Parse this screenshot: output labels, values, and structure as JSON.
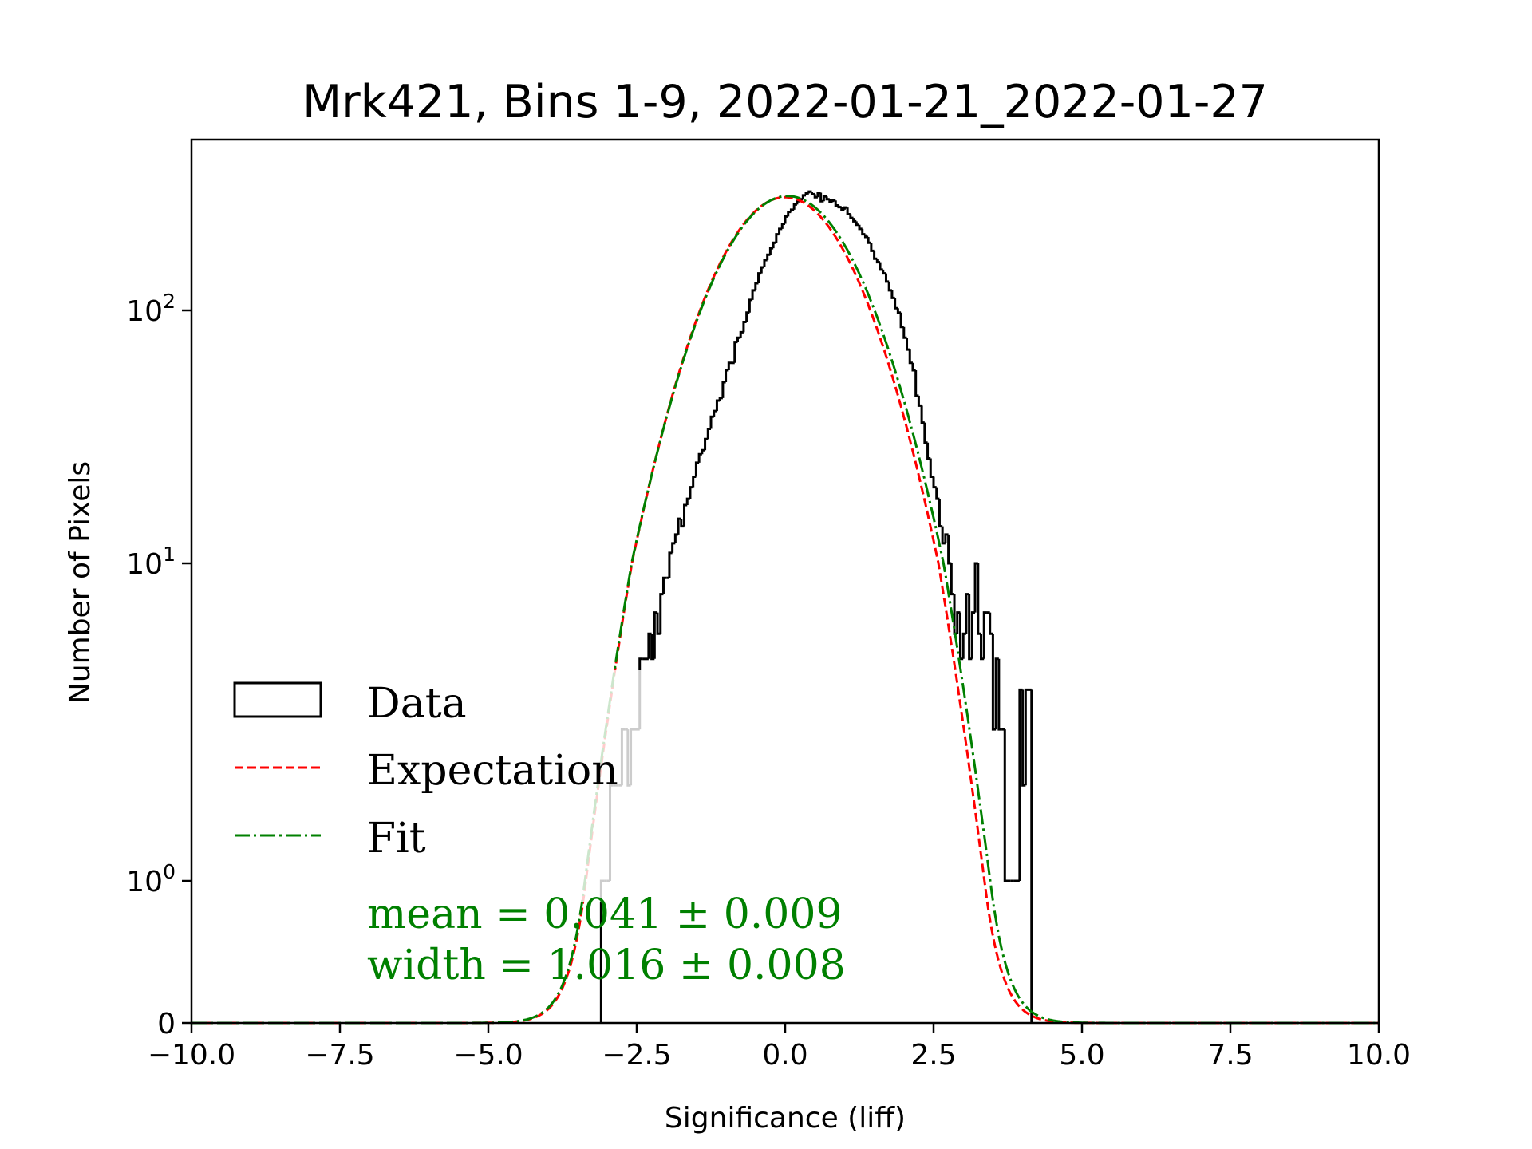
{
  "chart_data": {
    "type": "histogram",
    "title": "Mrk421, Bins 1-9, 2022-01-21_2022-01-27",
    "xlabel": "Significance (liff)",
    "ylabel": "Number of Pixels",
    "xlim": [
      -10,
      10
    ],
    "yscale": "symlog",
    "x_ticks": [
      -10.0,
      -7.5,
      -5.0,
      -2.5,
      0.0,
      2.5,
      5.0,
      7.5,
      10.0
    ],
    "x_tick_labels": [
      "−10.0",
      "−7.5",
      "−5.0",
      "−2.5",
      "0.0",
      "2.5",
      "5.0",
      "7.5",
      "10.0"
    ],
    "y_ticks": [
      {
        "value": 0,
        "base": "0",
        "exp": ""
      },
      {
        "value": 1,
        "base": "10",
        "exp": "0"
      },
      {
        "value": 10,
        "base": "10",
        "exp": "1"
      },
      {
        "value": 100,
        "base": "10",
        "exp": "2"
      }
    ],
    "legend": {
      "position": "lower-left",
      "entries": [
        {
          "label": "Data",
          "style": "step",
          "color": "#000000"
        },
        {
          "label": "Expectation",
          "style": "dashed",
          "color": "#ff0000"
        },
        {
          "label": "Fit",
          "style": "dashdot",
          "color": "#008000"
        }
      ]
    },
    "annotation": {
      "mean_text": "mean = 0.041 ± 0.009",
      "width_text": "width = 1.016 ± 0.008",
      "color": "#008000"
    },
    "expectation": {
      "mean": 0.0,
      "width": 1.0,
      "amplitude": 280
    },
    "fit": {
      "mean": 0.041,
      "width": 1.016,
      "amplitude": 283
    },
    "histogram": {
      "bin_start": -3.1,
      "bin_width": 0.05,
      "counts": [
        1,
        1,
        1,
        2,
        2,
        2,
        2,
        3,
        3,
        2,
        3,
        3,
        3,
        5,
        5,
        5,
        6,
        5,
        7,
        6,
        8,
        9,
        9,
        11,
        12,
        13,
        15,
        14,
        17,
        18,
        20,
        22,
        25,
        27,
        28,
        31,
        34,
        38,
        40,
        44,
        45,
        52,
        58,
        62,
        62,
        75,
        78,
        82,
        90,
        98,
        110,
        120,
        128,
        140,
        148,
        158,
        166,
        176,
        185,
        200,
        210,
        220,
        235,
        245,
        250,
        262,
        270,
        275,
        285,
        290,
        295,
        288,
        280,
        292,
        270,
        282,
        275,
        268,
        272,
        260,
        256,
        250,
        255,
        240,
        232,
        225,
        218,
        210,
        200,
        195,
        185,
        172,
        160,
        155,
        145,
        140,
        130,
        120,
        112,
        102,
        98,
        86,
        78,
        70,
        62,
        58,
        46,
        42,
        36,
        30,
        26,
        22,
        20,
        18,
        14,
        12,
        13,
        10,
        8,
        6,
        7,
        5,
        6,
        8,
        5,
        7,
        10,
        6,
        5,
        7,
        7,
        6,
        3,
        5,
        3,
        3,
        1,
        1,
        1,
        1,
        1,
        4,
        2,
        4,
        4
      ]
    }
  }
}
